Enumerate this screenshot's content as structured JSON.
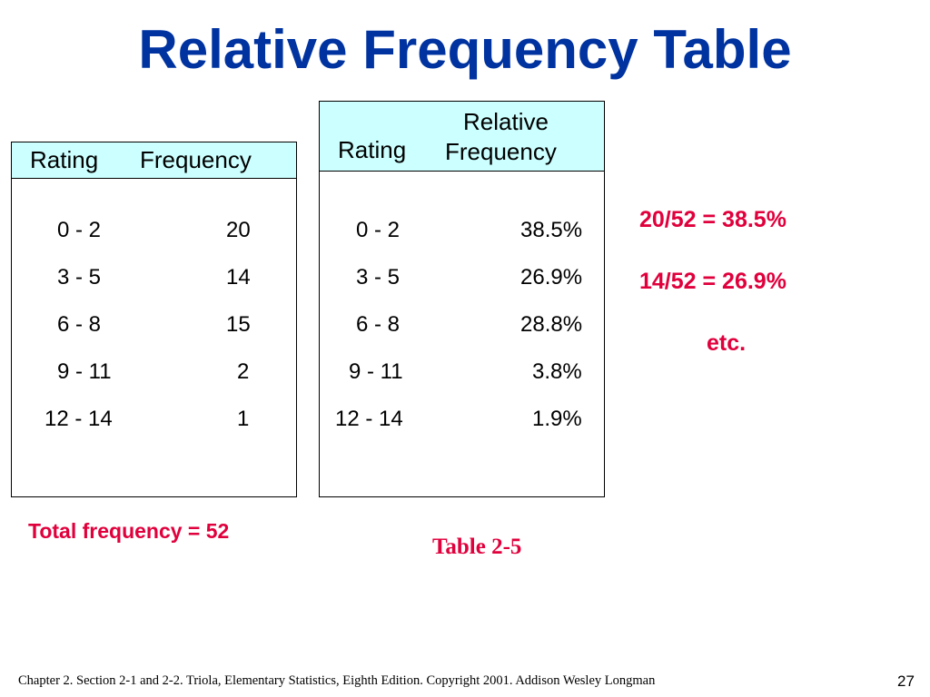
{
  "slide": {
    "title": "Relative Frequency Table"
  },
  "frequency_table": {
    "headers": {
      "rating": "Rating",
      "frequency": "Frequency"
    },
    "rows": [
      {
        "rating": "0 - 2",
        "value": "20"
      },
      {
        "rating": "3 - 5",
        "value": "14"
      },
      {
        "rating": "6 - 8",
        "value": "15"
      },
      {
        "rating": "9 - 11",
        "value": "2"
      },
      {
        "rating": "12 - 14",
        "value": "1"
      }
    ]
  },
  "relative_table": {
    "headers": {
      "rating": "Rating",
      "relative_line1": "Relative",
      "relative_line2": "Frequency"
    },
    "rows": [
      {
        "rating": "0 - 2",
        "value": "38.5%"
      },
      {
        "rating": "3 - 5",
        "value": "26.9%"
      },
      {
        "rating": "6 - 8",
        "value": "28.8%"
      },
      {
        "rating": "9 - 11",
        "value": "3.8%"
      },
      {
        "rating": "12 - 14",
        "value": "1.9%"
      }
    ]
  },
  "annotations": {
    "calc1": "20/52 = 38.5%",
    "calc2": "14/52 = 26.9%",
    "etc": "etc.",
    "total": "Total frequency = 52",
    "table_label": "Table 2-5"
  },
  "footer": {
    "citation": "Chapter 2.  Section 2-1 and 2-2. Triola, Elementary Statistics, Eighth Edition. Copyright  2001.  Addison Wesley Longman",
    "page_number": "27"
  },
  "colors": {
    "title": "#0033a0",
    "header_fill": "#ccffff",
    "annotation_red": "#e0003c"
  }
}
